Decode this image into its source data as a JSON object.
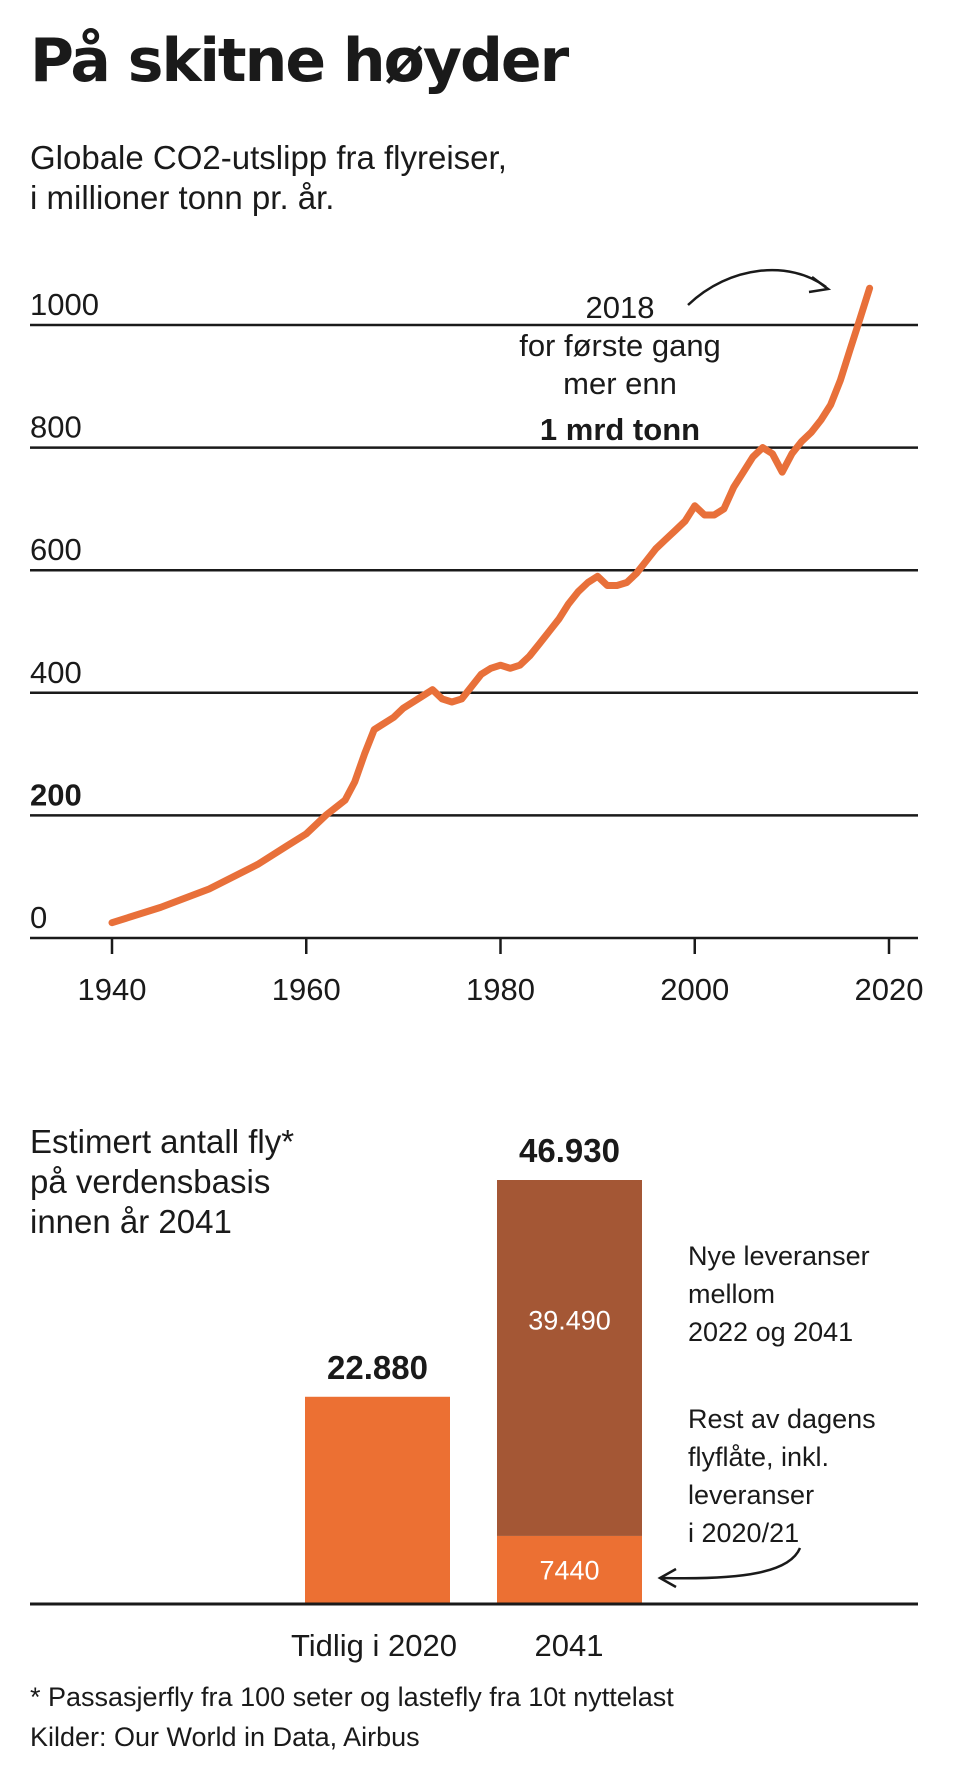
{
  "title": "På skitne høyder",
  "subtitle_lines": [
    "Globale CO2-utslipp fra flyreiser,",
    "i millioner tonn pr. år."
  ],
  "chart_data": [
    {
      "type": "line",
      "title": "Globale CO2-utslipp fra flyreiser, i millioner tonn pr. år.",
      "xlim": [
        1940,
        2020
      ],
      "ylim": [
        0,
        1000
      ],
      "grid": true,
      "x_ticks": [
        1940,
        1960,
        1980,
        2000,
        2020
      ],
      "y_ticks": [
        0,
        200,
        400,
        600,
        800,
        1000
      ],
      "y_tick_labels": [
        "0",
        "200",
        "400",
        "600",
        "800",
        "1000"
      ],
      "series": [
        {
          "color": "#e8703a",
          "points": [
            [
              1940,
              25
            ],
            [
              1945,
              50
            ],
            [
              1950,
              80
            ],
            [
              1955,
              120
            ],
            [
              1958,
              150
            ],
            [
              1960,
              170
            ],
            [
              1962,
              200
            ],
            [
              1964,
              225
            ],
            [
              1965,
              255
            ],
            [
              1966,
              300
            ],
            [
              1967,
              340
            ],
            [
              1968,
              350
            ],
            [
              1969,
              360
            ],
            [
              1970,
              375
            ],
            [
              1971,
              385
            ],
            [
              1972,
              395
            ],
            [
              1973,
              405
            ],
            [
              1974,
              390
            ],
            [
              1975,
              385
            ],
            [
              1976,
              390
            ],
            [
              1977,
              410
            ],
            [
              1978,
              430
            ],
            [
              1979,
              440
            ],
            [
              1980,
              445
            ],
            [
              1981,
              440
            ],
            [
              1982,
              445
            ],
            [
              1983,
              460
            ],
            [
              1984,
              480
            ],
            [
              1985,
              500
            ],
            [
              1986,
              520
            ],
            [
              1987,
              545
            ],
            [
              1988,
              565
            ],
            [
              1989,
              580
            ],
            [
              1990,
              590
            ],
            [
              1991,
              575
            ],
            [
              1992,
              575
            ],
            [
              1993,
              580
            ],
            [
              1994,
              595
            ],
            [
              1995,
              615
            ],
            [
              1996,
              635
            ],
            [
              1997,
              650
            ],
            [
              1998,
              665
            ],
            [
              1999,
              680
            ],
            [
              2000,
              705
            ],
            [
              2001,
              690
            ],
            [
              2002,
              690
            ],
            [
              2003,
              700
            ],
            [
              2004,
              735
            ],
            [
              2005,
              760
            ],
            [
              2006,
              785
            ],
            [
              2007,
              800
            ],
            [
              2008,
              790
            ],
            [
              2009,
              760
            ],
            [
              2010,
              790
            ],
            [
              2011,
              810
            ],
            [
              2012,
              825
            ],
            [
              2013,
              845
            ],
            [
              2014,
              870
            ],
            [
              2015,
              910
            ],
            [
              2016,
              960
            ],
            [
              2017,
              1010
            ],
            [
              2018,
              1060
            ]
          ]
        }
      ],
      "annotation": {
        "lines": [
          "2018",
          "for første gang",
          "mer enn"
        ],
        "bold_line": "1 mrd tonn"
      }
    },
    {
      "type": "bar",
      "title": "Estimert antall fly* på verdensbasis innen år 2041",
      "title_lines": [
        "Estimert antall fly*",
        "på verdensbasis",
        "innen år 2041"
      ],
      "categories": [
        "Tidlig i 2020",
        "2041"
      ],
      "ylim": [
        0,
        46930
      ],
      "bars": [
        {
          "category": "Tidlig i 2020",
          "total": 22880,
          "total_label": "22.880",
          "segments": [
            {
              "value": 22880,
              "label": "",
              "color": "#ec7033"
            }
          ]
        },
        {
          "category": "2041",
          "total": 46930,
          "total_label": "46.930",
          "segments": [
            {
              "value": 7440,
              "label": "7440",
              "color": "#ec7033"
            },
            {
              "value": 39490,
              "label": "39.490",
              "color": "#a45735"
            }
          ]
        }
      ],
      "legend_notes": [
        {
          "lines": [
            "Nye leveranser",
            "mellom",
            "2022 og 2041"
          ]
        },
        {
          "lines": [
            "Rest av dagens",
            "flyflåte, inkl.",
            "leveranser",
            "i 2020/21"
          ]
        }
      ]
    }
  ],
  "footnote": "* Passasjerfly fra 100 seter og lastefly fra 10t nyttelast",
  "sources": "Kilder: Our World in Data, Airbus",
  "colors": {
    "line": "#e8703a",
    "bar_orange": "#ec7033",
    "bar_brown": "#a45735",
    "text": "#1a1a1a"
  }
}
